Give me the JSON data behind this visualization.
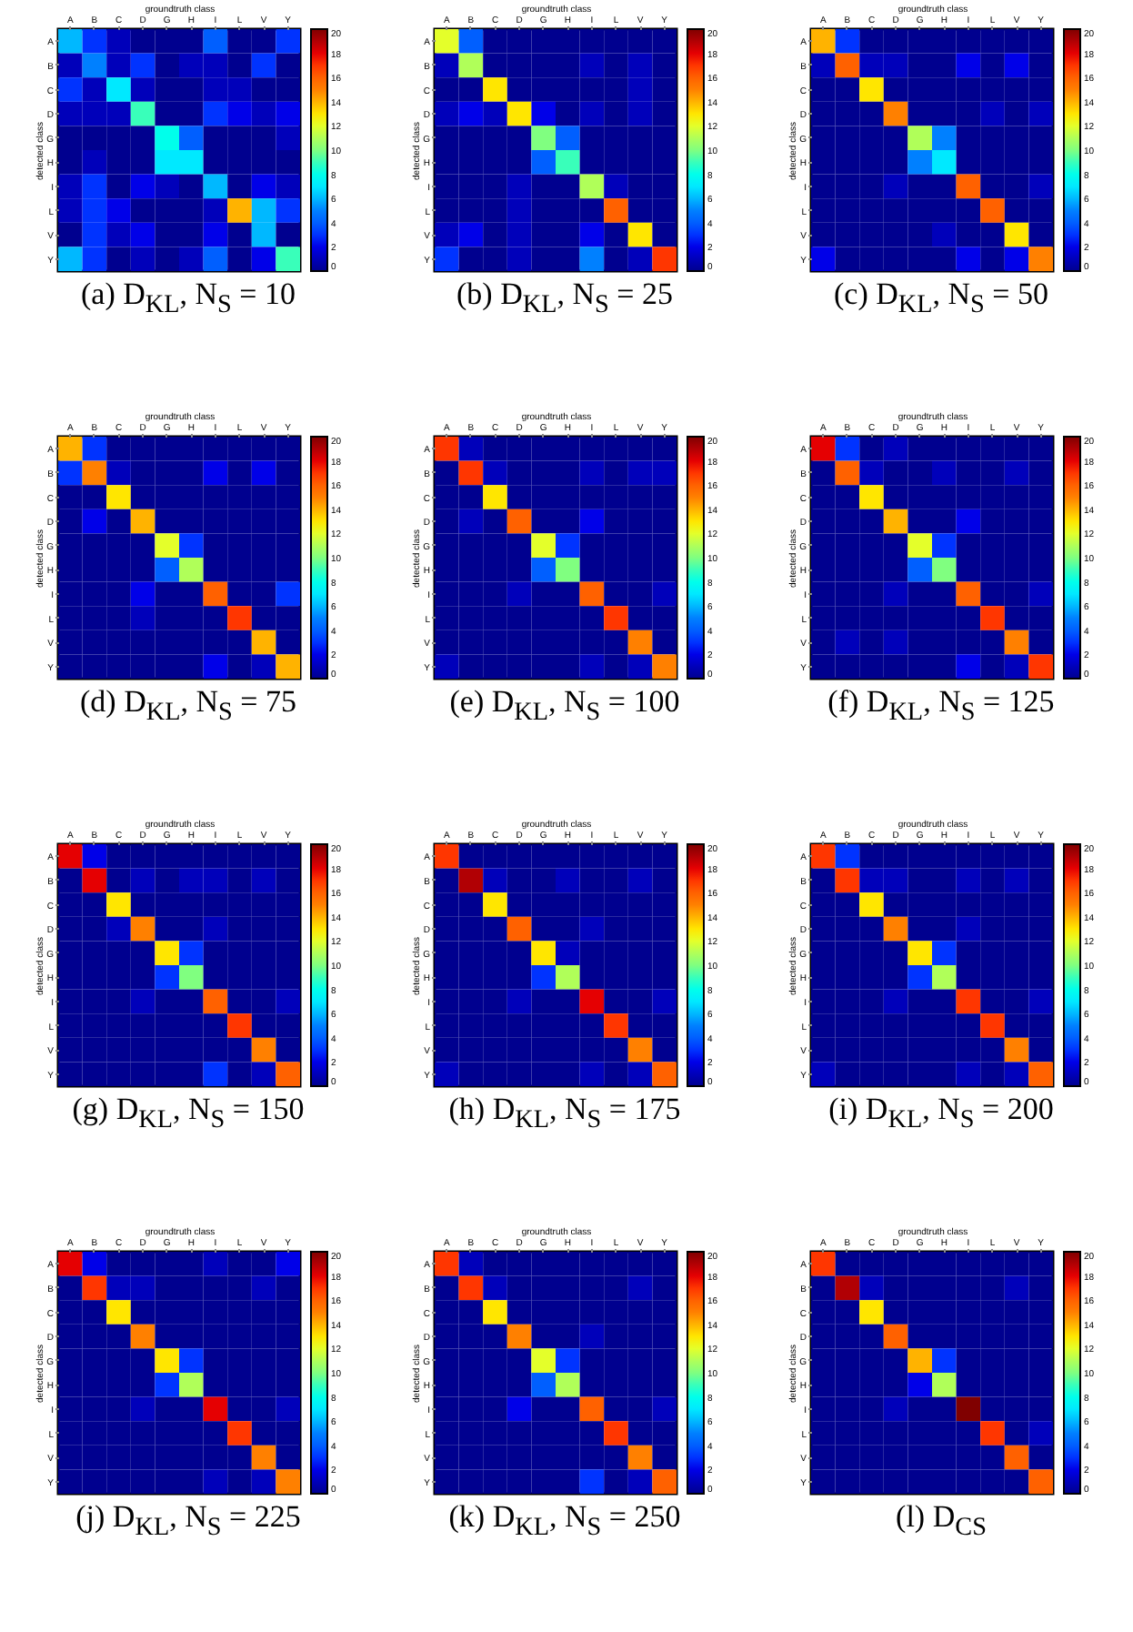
{
  "chart_data": [
    {
      "type": "heatmap",
      "title": "(a) D$_{KL}$, N$_{S}$ = 10",
      "xlabel": "groundtruth class",
      "ylabel": "detected class",
      "categories": [
        "A",
        "B",
        "C",
        "D",
        "G",
        "H",
        "I",
        "L",
        "V",
        "Y"
      ],
      "y_categories": [
        "A",
        "B",
        "C",
        "D",
        "G",
        "H",
        "I",
        "L",
        "V",
        "Y"
      ],
      "clim": [
        0,
        20
      ],
      "cticks": [
        0,
        2,
        4,
        6,
        8,
        10,
        12,
        14,
        16,
        18,
        20
      ],
      "cells": [
        [
          6,
          3,
          1,
          0,
          0,
          0,
          4,
          0,
          0,
          3
        ],
        [
          1,
          5,
          1,
          3,
          0,
          1,
          1,
          0,
          3,
          0
        ],
        [
          3,
          1,
          7,
          1,
          0,
          0,
          1,
          1,
          0,
          0
        ],
        [
          1,
          1,
          1,
          9,
          0,
          0,
          3,
          2,
          1,
          2
        ],
        [
          0,
          0,
          0,
          0,
          8,
          4,
          0,
          0,
          0,
          1
        ],
        [
          0,
          1,
          0,
          0,
          7,
          7,
          0,
          0,
          0,
          0
        ],
        [
          1,
          3,
          0,
          2,
          1,
          0,
          6,
          0,
          2,
          1
        ],
        [
          1,
          3,
          2,
          0,
          0,
          0,
          1,
          14,
          6,
          3
        ],
        [
          0,
          3,
          1,
          2,
          0,
          0,
          2,
          0,
          6,
          0
        ],
        [
          6,
          3,
          0,
          1,
          0,
          1,
          4,
          0,
          2,
          9
        ]
      ]
    },
    {
      "type": "heatmap",
      "title": "(b) D$_{KL}$, N$_{S}$ = 25",
      "xlabel": "groundtruth class",
      "ylabel": "detected class",
      "categories": [
        "A",
        "B",
        "C",
        "D",
        "G",
        "H",
        "I",
        "L",
        "V",
        "Y"
      ],
      "y_categories": [
        "A",
        "B",
        "C",
        "D",
        "G",
        "H",
        "I",
        "L",
        "V",
        "Y"
      ],
      "clim": [
        0,
        20
      ],
      "cticks": [
        0,
        2,
        4,
        6,
        8,
        10,
        12,
        14,
        16,
        18,
        20
      ],
      "cells": [
        [
          12,
          4,
          0,
          0,
          0,
          0,
          0,
          0,
          0,
          0
        ],
        [
          1,
          11,
          0,
          0,
          0,
          0,
          1,
          0,
          1,
          0
        ],
        [
          0,
          0,
          13,
          0,
          0,
          0,
          0,
          0,
          1,
          0
        ],
        [
          1,
          2,
          1,
          13,
          2,
          0,
          1,
          0,
          1,
          0
        ],
        [
          0,
          0,
          0,
          0,
          10,
          4,
          0,
          0,
          0,
          0
        ],
        [
          0,
          0,
          0,
          0,
          4,
          9,
          0,
          0,
          0,
          0
        ],
        [
          0,
          0,
          0,
          1,
          0,
          0,
          11,
          1,
          0,
          0
        ],
        [
          0,
          0,
          0,
          1,
          0,
          0,
          0,
          16,
          0,
          0
        ],
        [
          1,
          2,
          0,
          1,
          0,
          0,
          2,
          0,
          13,
          0
        ],
        [
          3,
          0,
          0,
          1,
          0,
          0,
          5,
          0,
          1,
          17
        ]
      ]
    },
    {
      "type": "heatmap",
      "title": "(c) D$_{KL}$, N$_{S}$ = 50",
      "xlabel": "groundtruth class",
      "ylabel": "detected class",
      "categories": [
        "A",
        "B",
        "C",
        "D",
        "G",
        "H",
        "I",
        "L",
        "V",
        "Y"
      ],
      "y_categories": [
        "A",
        "B",
        "C",
        "D",
        "G",
        "H",
        "I",
        "L",
        "V",
        "Y"
      ],
      "clim": [
        0,
        20
      ],
      "cticks": [
        0,
        2,
        4,
        6,
        8,
        10,
        12,
        14,
        16,
        18,
        20
      ],
      "cells": [
        [
          14,
          3,
          0,
          0,
          0,
          0,
          0,
          0,
          0,
          0
        ],
        [
          1,
          16,
          1,
          1,
          0,
          0,
          2,
          0,
          2,
          0
        ],
        [
          0,
          0,
          13,
          0,
          0,
          0,
          0,
          0,
          0,
          0
        ],
        [
          0,
          0,
          0,
          15,
          0,
          0,
          0,
          1,
          0,
          1
        ],
        [
          0,
          0,
          0,
          0,
          11,
          5,
          0,
          0,
          0,
          0
        ],
        [
          0,
          0,
          0,
          0,
          5,
          7,
          0,
          0,
          0,
          0
        ],
        [
          0,
          0,
          0,
          1,
          0,
          0,
          16,
          0,
          0,
          1
        ],
        [
          0,
          0,
          0,
          0,
          0,
          0,
          0,
          16,
          0,
          0
        ],
        [
          0,
          0,
          0,
          0,
          0,
          1,
          0,
          0,
          13,
          0
        ],
        [
          2,
          0,
          0,
          0,
          0,
          0,
          2,
          0,
          2,
          15
        ]
      ]
    },
    {
      "type": "heatmap",
      "title": "(d) D$_{KL}$, N$_{S}$ = 75",
      "xlabel": "groundtruth class",
      "ylabel": "detected class",
      "categories": [
        "A",
        "B",
        "C",
        "D",
        "G",
        "H",
        "I",
        "L",
        "V",
        "Y"
      ],
      "y_categories": [
        "A",
        "B",
        "C",
        "D",
        "G",
        "H",
        "I",
        "L",
        "V",
        "Y"
      ],
      "clim": [
        0,
        20
      ],
      "cticks": [
        0,
        2,
        4,
        6,
        8,
        10,
        12,
        14,
        16,
        18,
        20
      ],
      "cells": [
        [
          14,
          3,
          0,
          0,
          0,
          0,
          0,
          0,
          0,
          0
        ],
        [
          3,
          15,
          1,
          0,
          0,
          0,
          2,
          0,
          2,
          0
        ],
        [
          0,
          0,
          13,
          0,
          0,
          0,
          0,
          0,
          0,
          0
        ],
        [
          0,
          2,
          0,
          14,
          0,
          0,
          0,
          0,
          0,
          0
        ],
        [
          0,
          0,
          0,
          0,
          12,
          3,
          0,
          0,
          0,
          0
        ],
        [
          0,
          0,
          0,
          0,
          4,
          11,
          0,
          0,
          0,
          0
        ],
        [
          0,
          0,
          0,
          2,
          0,
          0,
          16,
          0,
          0,
          3
        ],
        [
          0,
          0,
          0,
          1,
          0,
          0,
          0,
          17,
          0,
          0
        ],
        [
          0,
          0,
          0,
          0,
          0,
          0,
          0,
          0,
          14,
          0
        ],
        [
          0,
          0,
          0,
          0,
          0,
          0,
          2,
          0,
          1,
          14
        ]
      ]
    },
    {
      "type": "heatmap",
      "title": "(e) D$_{KL}$, N$_{S}$ = 100",
      "xlabel": "groundtruth class",
      "ylabel": "detected class",
      "categories": [
        "A",
        "B",
        "C",
        "D",
        "G",
        "H",
        "I",
        "L",
        "V",
        "Y"
      ],
      "y_categories": [
        "A",
        "B",
        "C",
        "D",
        "G",
        "H",
        "I",
        "L",
        "V",
        "Y"
      ],
      "clim": [
        0,
        20
      ],
      "cticks": [
        0,
        2,
        4,
        6,
        8,
        10,
        12,
        14,
        16,
        18,
        20
      ],
      "cells": [
        [
          17,
          1,
          0,
          0,
          0,
          0,
          0,
          0,
          0,
          0
        ],
        [
          0,
          17,
          1,
          0,
          0,
          0,
          1,
          0,
          1,
          1
        ],
        [
          0,
          0,
          13,
          0,
          0,
          0,
          0,
          0,
          0,
          0
        ],
        [
          0,
          1,
          0,
          16,
          0,
          0,
          2,
          0,
          0,
          0
        ],
        [
          0,
          0,
          0,
          0,
          12,
          3,
          0,
          0,
          0,
          0
        ],
        [
          0,
          0,
          0,
          0,
          4,
          10,
          0,
          0,
          0,
          0
        ],
        [
          0,
          0,
          0,
          1,
          0,
          0,
          16,
          0,
          0,
          1
        ],
        [
          0,
          0,
          0,
          0,
          0,
          0,
          0,
          17,
          0,
          0
        ],
        [
          0,
          0,
          0,
          0,
          0,
          0,
          0,
          0,
          15,
          0
        ],
        [
          1,
          0,
          0,
          0,
          0,
          0,
          1,
          0,
          1,
          15
        ]
      ]
    },
    {
      "type": "heatmap",
      "title": "(f) D$_{KL}$, N$_{S}$ = 125",
      "xlabel": "groundtruth class",
      "ylabel": "detected class",
      "categories": [
        "A",
        "B",
        "C",
        "D",
        "G",
        "H",
        "I",
        "L",
        "V",
        "Y"
      ],
      "y_categories": [
        "A",
        "B",
        "C",
        "D",
        "G",
        "H",
        "I",
        "L",
        "V",
        "Y"
      ],
      "clim": [
        0,
        20
      ],
      "cticks": [
        0,
        2,
        4,
        6,
        8,
        10,
        12,
        14,
        16,
        18,
        20
      ],
      "cells": [
        [
          18,
          3,
          0,
          1,
          0,
          0,
          0,
          0,
          0,
          0
        ],
        [
          0,
          16,
          1,
          0,
          0,
          1,
          0,
          0,
          1,
          0
        ],
        [
          0,
          0,
          13,
          0,
          0,
          0,
          0,
          0,
          0,
          0
        ],
        [
          0,
          0,
          0,
          14,
          0,
          0,
          2,
          0,
          0,
          0
        ],
        [
          0,
          0,
          0,
          0,
          12,
          3,
          0,
          0,
          0,
          0
        ],
        [
          0,
          0,
          0,
          0,
          4,
          10,
          0,
          0,
          0,
          0
        ],
        [
          0,
          0,
          0,
          1,
          0,
          0,
          16,
          0,
          0,
          1
        ],
        [
          0,
          0,
          0,
          0,
          0,
          0,
          0,
          17,
          0,
          0
        ],
        [
          0,
          1,
          0,
          1,
          0,
          0,
          0,
          0,
          15,
          0
        ],
        [
          0,
          0,
          0,
          0,
          0,
          0,
          2,
          0,
          1,
          17
        ]
      ]
    },
    {
      "type": "heatmap",
      "title": "(g) D$_{KL}$, N$_{S}$ = 150",
      "xlabel": "groundtruth class",
      "ylabel": "detected class",
      "categories": [
        "A",
        "B",
        "C",
        "D",
        "G",
        "H",
        "I",
        "L",
        "V",
        "Y"
      ],
      "y_categories": [
        "A",
        "B",
        "C",
        "D",
        "G",
        "H",
        "I",
        "L",
        "V",
        "Y"
      ],
      "clim": [
        0,
        20
      ],
      "cticks": [
        0,
        2,
        4,
        6,
        8,
        10,
        12,
        14,
        16,
        18,
        20
      ],
      "cells": [
        [
          18,
          2,
          0,
          0,
          0,
          0,
          0,
          0,
          0,
          0
        ],
        [
          0,
          18,
          0,
          1,
          0,
          1,
          1,
          0,
          1,
          0
        ],
        [
          0,
          0,
          13,
          0,
          0,
          0,
          0,
          0,
          0,
          0
        ],
        [
          0,
          0,
          1,
          15,
          0,
          0,
          1,
          0,
          0,
          0
        ],
        [
          0,
          0,
          0,
          0,
          13,
          3,
          0,
          0,
          0,
          0
        ],
        [
          0,
          0,
          0,
          0,
          3,
          10,
          0,
          0,
          0,
          0
        ],
        [
          0,
          0,
          0,
          1,
          0,
          0,
          16,
          0,
          0,
          1
        ],
        [
          0,
          0,
          0,
          0,
          0,
          0,
          0,
          17,
          0,
          0
        ],
        [
          0,
          0,
          0,
          0,
          0,
          0,
          0,
          0,
          15,
          0
        ],
        [
          0,
          0,
          0,
          0,
          0,
          0,
          3,
          0,
          1,
          16
        ]
      ]
    },
    {
      "type": "heatmap",
      "title": "(h) D$_{KL}$, N$_{S}$ = 175",
      "xlabel": "groundtruth class",
      "ylabel": "detected class",
      "categories": [
        "A",
        "B",
        "C",
        "D",
        "G",
        "H",
        "I",
        "L",
        "V",
        "Y"
      ],
      "y_categories": [
        "A",
        "B",
        "C",
        "D",
        "G",
        "H",
        "I",
        "L",
        "V",
        "Y"
      ],
      "clim": [
        0,
        20
      ],
      "cticks": [
        0,
        2,
        4,
        6,
        8,
        10,
        12,
        14,
        16,
        18,
        20
      ],
      "cells": [
        [
          17,
          0,
          0,
          0,
          0,
          0,
          0,
          0,
          0,
          0
        ],
        [
          0,
          19,
          1,
          0,
          0,
          1,
          0,
          0,
          1,
          0
        ],
        [
          0,
          0,
          13,
          0,
          0,
          0,
          0,
          0,
          0,
          0
        ],
        [
          0,
          0,
          0,
          16,
          0,
          0,
          1,
          0,
          0,
          0
        ],
        [
          0,
          0,
          0,
          0,
          13,
          1,
          0,
          0,
          0,
          0
        ],
        [
          0,
          0,
          0,
          0,
          3,
          11,
          0,
          0,
          0,
          0
        ],
        [
          0,
          0,
          0,
          1,
          0,
          0,
          18,
          0,
          0,
          1
        ],
        [
          0,
          0,
          0,
          0,
          0,
          0,
          0,
          17,
          0,
          0
        ],
        [
          0,
          0,
          0,
          0,
          0,
          0,
          0,
          0,
          15,
          0
        ],
        [
          1,
          0,
          0,
          0,
          0,
          0,
          1,
          0,
          1,
          16
        ]
      ]
    },
    {
      "type": "heatmap",
      "title": "(i) D$_{KL}$, N$_{S}$ = 200",
      "xlabel": "groundtruth class",
      "ylabel": "detected class",
      "categories": [
        "A",
        "B",
        "C",
        "D",
        "G",
        "H",
        "I",
        "L",
        "V",
        "Y"
      ],
      "y_categories": [
        "A",
        "B",
        "C",
        "D",
        "G",
        "H",
        "I",
        "L",
        "V",
        "Y"
      ],
      "clim": [
        0,
        20
      ],
      "cticks": [
        0,
        2,
        4,
        6,
        8,
        10,
        12,
        14,
        16,
        18,
        20
      ],
      "cells": [
        [
          17,
          3,
          0,
          0,
          0,
          0,
          0,
          0,
          0,
          0
        ],
        [
          0,
          17,
          1,
          1,
          0,
          0,
          1,
          0,
          1,
          0
        ],
        [
          0,
          0,
          13,
          0,
          0,
          0,
          0,
          0,
          0,
          0
        ],
        [
          0,
          0,
          0,
          15,
          0,
          0,
          1,
          0,
          0,
          0
        ],
        [
          0,
          0,
          0,
          0,
          13,
          3,
          0,
          0,
          0,
          0
        ],
        [
          0,
          0,
          0,
          0,
          3,
          11,
          0,
          0,
          0,
          0
        ],
        [
          0,
          0,
          0,
          1,
          0,
          0,
          17,
          0,
          0,
          1
        ],
        [
          0,
          0,
          0,
          0,
          0,
          0,
          0,
          17,
          0,
          0
        ],
        [
          0,
          0,
          0,
          0,
          0,
          0,
          0,
          0,
          15,
          0
        ],
        [
          1,
          0,
          0,
          0,
          0,
          0,
          1,
          0,
          1,
          16
        ]
      ]
    },
    {
      "type": "heatmap",
      "title": "(j) D$_{KL}$, N$_{S}$ = 225",
      "xlabel": "groundtruth class",
      "ylabel": "detected class",
      "categories": [
        "A",
        "B",
        "C",
        "D",
        "G",
        "H",
        "I",
        "L",
        "V",
        "Y"
      ],
      "y_categories": [
        "A",
        "B",
        "C",
        "D",
        "G",
        "H",
        "I",
        "L",
        "V",
        "Y"
      ],
      "clim": [
        0,
        20
      ],
      "cticks": [
        0,
        2,
        4,
        6,
        8,
        10,
        12,
        14,
        16,
        18,
        20
      ],
      "cells": [
        [
          18,
          2,
          0,
          0,
          0,
          0,
          1,
          0,
          0,
          2
        ],
        [
          0,
          17,
          1,
          1,
          0,
          0,
          0,
          0,
          1,
          0
        ],
        [
          0,
          0,
          13,
          0,
          0,
          0,
          0,
          0,
          0,
          0
        ],
        [
          0,
          0,
          0,
          15,
          0,
          0,
          0,
          0,
          0,
          0
        ],
        [
          0,
          0,
          0,
          0,
          13,
          3,
          0,
          0,
          0,
          0
        ],
        [
          0,
          0,
          0,
          0,
          3,
          11,
          0,
          0,
          0,
          0
        ],
        [
          0,
          0,
          0,
          1,
          0,
          0,
          18,
          0,
          0,
          1
        ],
        [
          0,
          0,
          0,
          0,
          0,
          0,
          0,
          17,
          0,
          0
        ],
        [
          0,
          0,
          0,
          0,
          0,
          0,
          0,
          0,
          15,
          0
        ],
        [
          0,
          0,
          0,
          0,
          0,
          0,
          1,
          0,
          1,
          15
        ]
      ]
    },
    {
      "type": "heatmap",
      "title": "(k) D$_{KL}$, N$_{S}$ = 250",
      "xlabel": "groundtruth class",
      "ylabel": "detected class",
      "categories": [
        "A",
        "B",
        "C",
        "D",
        "G",
        "H",
        "I",
        "L",
        "V",
        "Y"
      ],
      "y_categories": [
        "A",
        "B",
        "C",
        "D",
        "G",
        "H",
        "I",
        "L",
        "V",
        "Y"
      ],
      "clim": [
        0,
        20
      ],
      "cticks": [
        0,
        2,
        4,
        6,
        8,
        10,
        12,
        14,
        16,
        18,
        20
      ],
      "cells": [
        [
          17,
          1,
          0,
          0,
          0,
          0,
          0,
          0,
          0,
          0
        ],
        [
          0,
          17,
          1,
          0,
          0,
          0,
          0,
          0,
          1,
          0
        ],
        [
          0,
          0,
          13,
          0,
          0,
          0,
          0,
          0,
          0,
          0
        ],
        [
          0,
          0,
          0,
          15,
          0,
          0,
          1,
          0,
          0,
          0
        ],
        [
          0,
          0,
          0,
          0,
          12,
          3,
          0,
          0,
          0,
          0
        ],
        [
          0,
          0,
          0,
          0,
          4,
          11,
          0,
          0,
          0,
          0
        ],
        [
          0,
          0,
          0,
          2,
          0,
          0,
          16,
          0,
          0,
          1
        ],
        [
          0,
          0,
          0,
          0,
          0,
          0,
          0,
          17,
          0,
          0
        ],
        [
          0,
          0,
          0,
          0,
          0,
          0,
          0,
          0,
          15,
          0
        ],
        [
          0,
          0,
          0,
          0,
          0,
          0,
          3,
          0,
          1,
          16
        ]
      ]
    },
    {
      "type": "heatmap",
      "title": "(l) D$_{CS}$",
      "xlabel": "groundtruth class",
      "ylabel": "detected class",
      "categories": [
        "A",
        "B",
        "C",
        "D",
        "G",
        "H",
        "I",
        "L",
        "V",
        "Y"
      ],
      "y_categories": [
        "A",
        "B",
        "C",
        "D",
        "G",
        "H",
        "I",
        "L",
        "V",
        "Y"
      ],
      "clim": [
        0,
        20
      ],
      "cticks": [
        0,
        2,
        4,
        6,
        8,
        10,
        12,
        14,
        16,
        18,
        20
      ],
      "cells": [
        [
          17,
          0,
          0,
          0,
          0,
          0,
          0,
          0,
          0,
          0
        ],
        [
          0,
          19,
          1,
          0,
          0,
          0,
          0,
          0,
          1,
          0
        ],
        [
          0,
          0,
          13,
          0,
          0,
          0,
          0,
          0,
          0,
          0
        ],
        [
          0,
          0,
          0,
          16,
          0,
          0,
          0,
          0,
          0,
          0
        ],
        [
          0,
          0,
          0,
          0,
          14,
          3,
          0,
          0,
          0,
          0
        ],
        [
          0,
          0,
          0,
          0,
          2,
          11,
          0,
          0,
          0,
          0
        ],
        [
          0,
          0,
          0,
          1,
          0,
          0,
          20,
          0,
          0,
          0
        ],
        [
          0,
          0,
          0,
          0,
          0,
          0,
          0,
          17,
          0,
          1
        ],
        [
          0,
          0,
          0,
          0,
          0,
          0,
          0,
          0,
          16,
          0
        ],
        [
          0,
          0,
          0,
          0,
          0,
          0,
          0,
          0,
          0,
          16
        ]
      ]
    }
  ]
}
